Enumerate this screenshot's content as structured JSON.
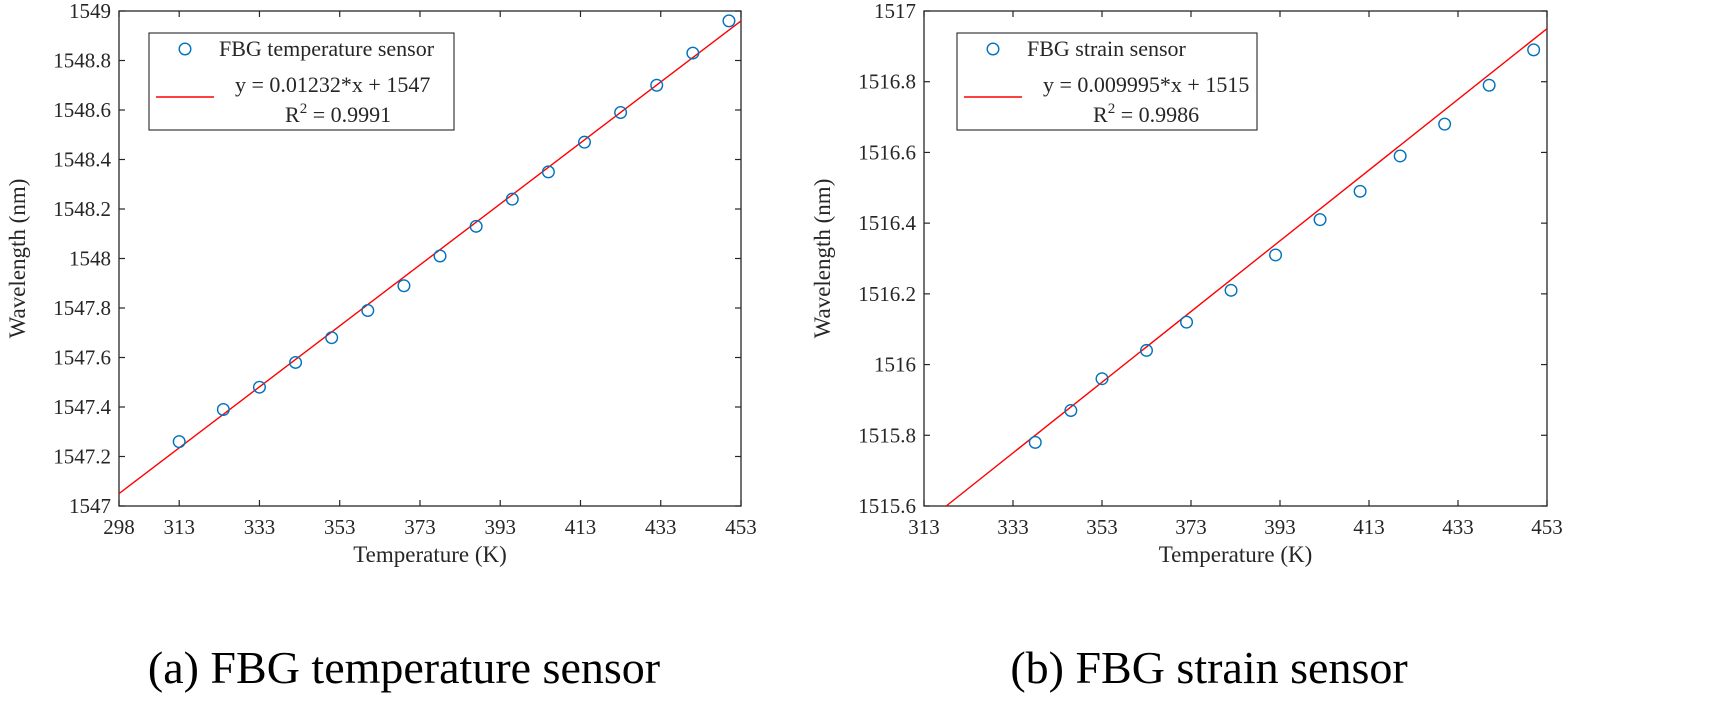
{
  "colors": {
    "marker": "#0072BD",
    "fit_line": "#FF0000",
    "axis": "#262626"
  },
  "chart_data": [
    {
      "type": "scatter",
      "caption": "(a)  FBG temperature sensor",
      "xlabel": "Temperature (K)",
      "ylabel": "Wavelength (nm)",
      "xlim": [
        298,
        453
      ],
      "ylim": [
        1547,
        1549
      ],
      "xticks": [
        298,
        313,
        333,
        353,
        373,
        393,
        413,
        433,
        453
      ],
      "yticks": [
        1547,
        1547.2,
        1547.4,
        1547.6,
        1547.8,
        1548,
        1548.2,
        1548.4,
        1548.6,
        1548.8,
        1549
      ],
      "grid": false,
      "legend_position": "top-left",
      "series": [
        {
          "name": "FBG temperature sensor",
          "marker": "circle-open",
          "x": [
            313,
            324,
            333,
            342,
            351,
            360,
            369,
            378,
            387,
            396,
            405,
            414,
            423,
            432,
            441,
            450
          ],
          "y": [
            1547.26,
            1547.39,
            1547.48,
            1547.58,
            1547.68,
            1547.79,
            1547.89,
            1548.01,
            1548.13,
            1548.24,
            1548.35,
            1548.47,
            1548.59,
            1548.7,
            1548.83,
            1548.96
          ]
        }
      ],
      "fit": {
        "equation": "y = 0.01232*x + 1547",
        "r2_label": "R",
        "r2_exp": "2",
        "r2_value": " = 0.9991",
        "line": {
          "x1": 298,
          "y1": 1547.05,
          "x2": 453,
          "y2": 1548.96
        }
      }
    },
    {
      "type": "scatter",
      "caption": "(b)  FBG strain sensor",
      "xlabel": "Temperature (K)",
      "ylabel": "Wavelength (nm)",
      "xlim": [
        313,
        453
      ],
      "ylim": [
        1515.6,
        1517
      ],
      "xticks": [
        313,
        333,
        353,
        373,
        393,
        413,
        433,
        453
      ],
      "yticks": [
        1515.6,
        1515.8,
        1516,
        1516.2,
        1516.4,
        1516.6,
        1516.8,
        1517
      ],
      "grid": false,
      "legend_position": "top-left",
      "series": [
        {
          "name": "FBG strain sensor",
          "marker": "circle-open",
          "x": [
            338,
            346,
            353,
            363,
            372,
            382,
            392,
            402,
            411,
            420,
            430,
            440,
            450
          ],
          "y": [
            1515.78,
            1515.87,
            1515.96,
            1516.04,
            1516.12,
            1516.21,
            1516.31,
            1516.41,
            1516.49,
            1516.59,
            1516.68,
            1516.79,
            1516.89
          ]
        }
      ],
      "fit": {
        "equation": "y = 0.009995*x + 1515",
        "r2_label": "R",
        "r2_exp": "2",
        "r2_value": " = 0.9986",
        "line": {
          "x1": 318,
          "y1": 1515.6,
          "x2": 453,
          "y2": 1516.95
        }
      }
    }
  ]
}
